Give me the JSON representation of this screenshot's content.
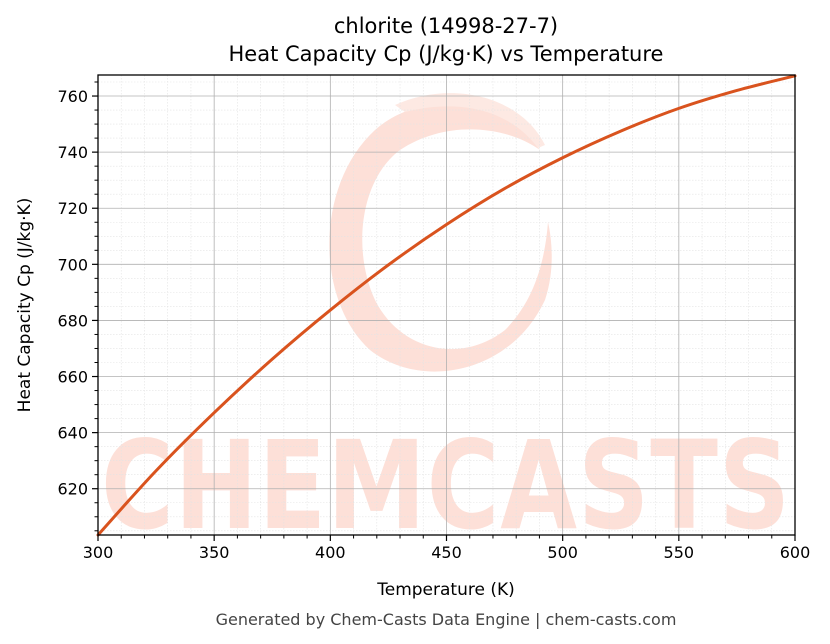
{
  "chart_data": {
    "type": "line",
    "title": "chlorite (14998-27-7)",
    "subtitle": "Heat Capacity Cp (J/kg·K) vs Temperature",
    "xlabel": "Temperature (K)",
    "ylabel": "Heat Capacity Cp (J/kg·K)",
    "xlim": [
      300,
      600
    ],
    "ylim": [
      603.5,
      767.5
    ],
    "xticks": [
      300,
      350,
      400,
      450,
      500,
      550,
      600
    ],
    "yticks": [
      620,
      640,
      660,
      680,
      700,
      720,
      740,
      760
    ],
    "grid": true,
    "legend": "none",
    "series": [
      {
        "color": "#d9531e",
        "x": [
          300,
          325,
          350,
          375,
          400,
          425,
          450,
          475,
          500,
          525,
          550,
          575,
          600
        ],
        "y": [
          603.5,
          626.4,
          647.1,
          666.2,
          683.7,
          699.8,
          714.2,
          727.0,
          738.0,
          747.5,
          755.6,
          762.0,
          767.2
        ]
      }
    ]
  },
  "watermark": {
    "text": "CHEMCASTS",
    "color": "#fde0d8"
  },
  "footer": "Generated by Chem-Casts Data Engine | chem-casts.com"
}
